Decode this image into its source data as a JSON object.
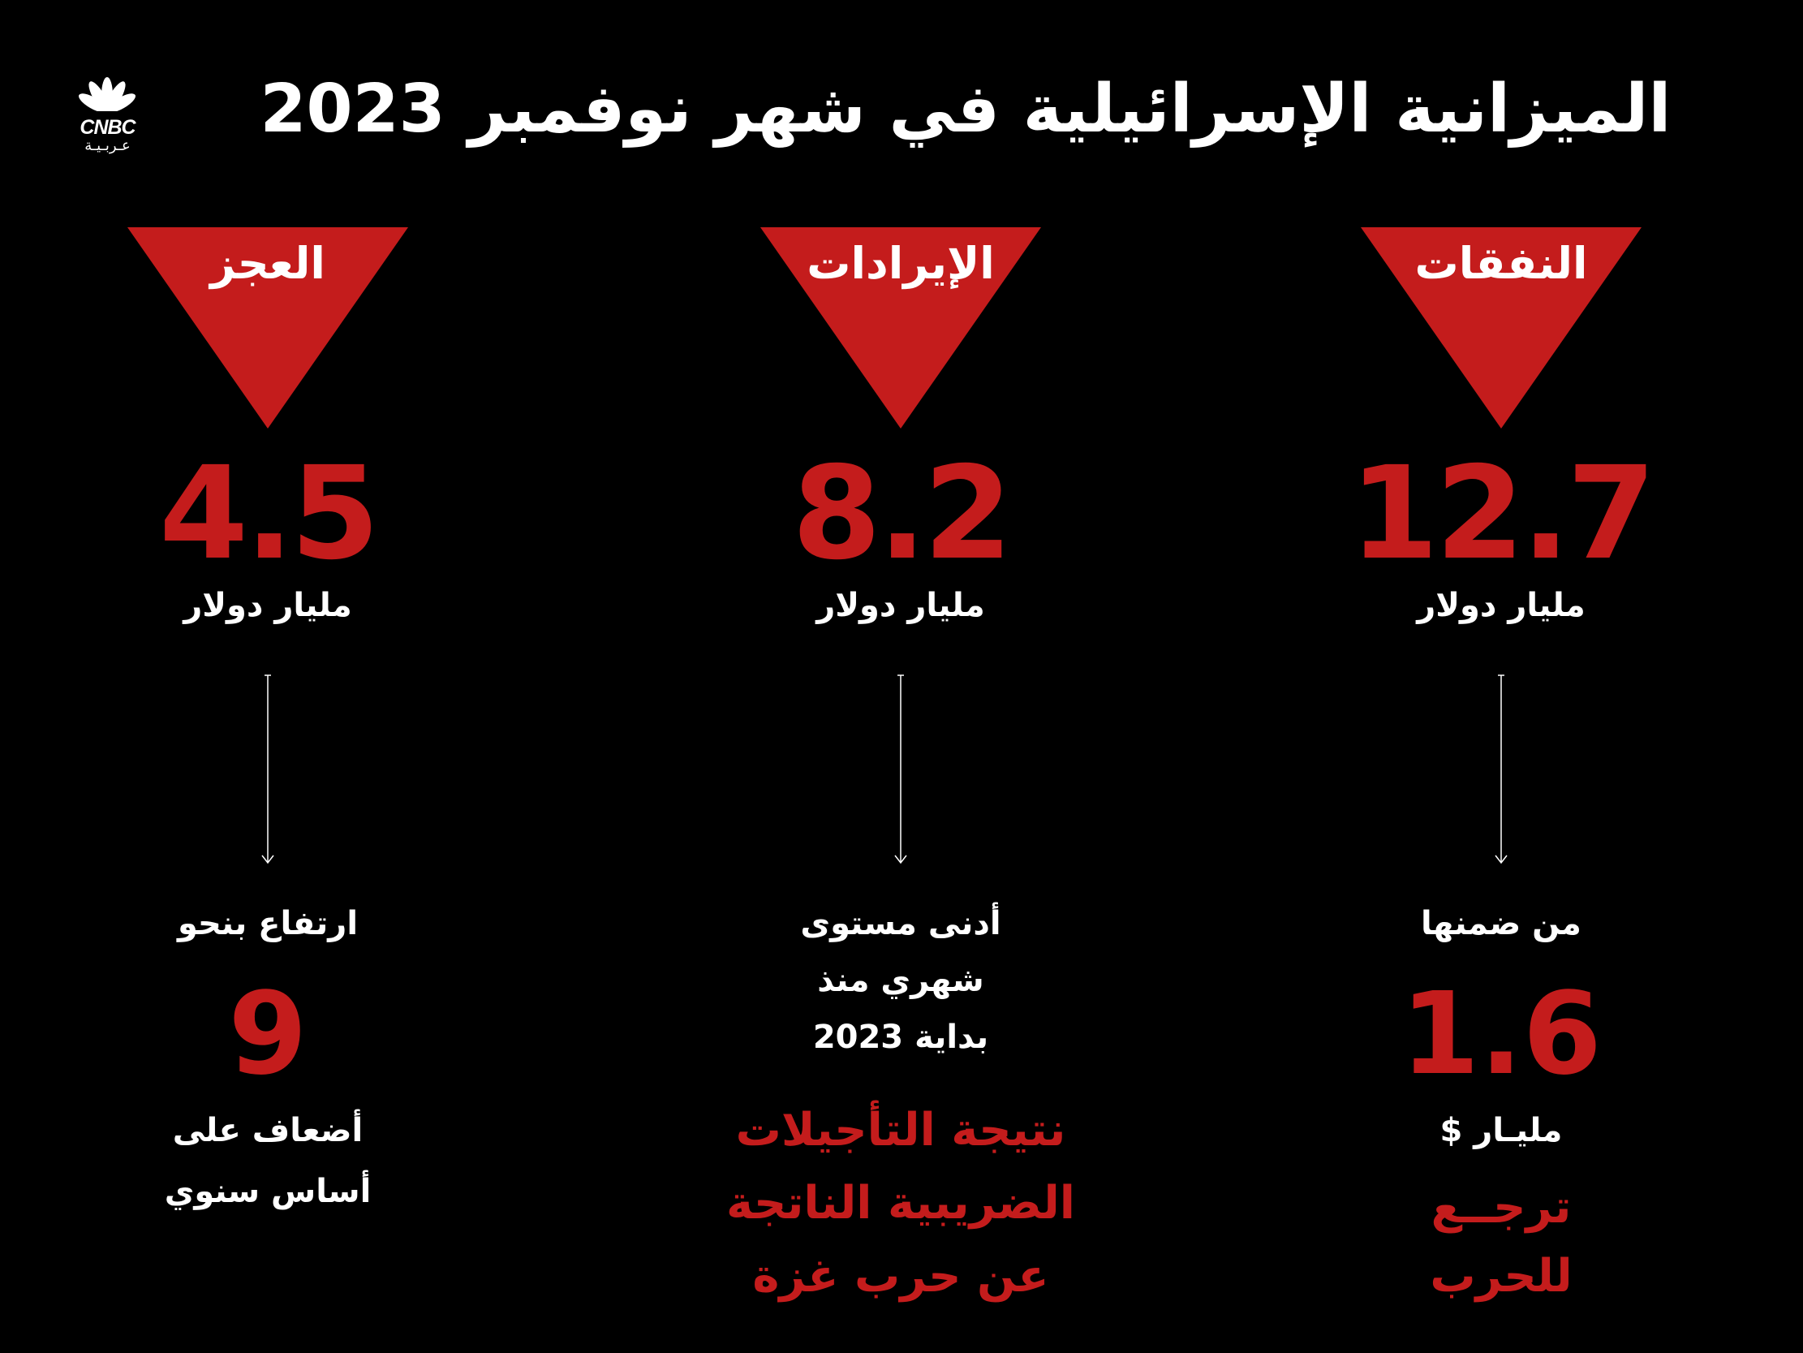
{
  "title": "الميزانية الإسرائيلية في شهر نوفمبر 2023",
  "logo": {
    "brand": "CNBC",
    "arabic": "عـربـيـة"
  },
  "colors": {
    "background": "#000000",
    "accent_red": "#c41c1c",
    "text": "#ffffff"
  },
  "columns": {
    "expenses": {
      "label": "النفقات",
      "value": "12.7",
      "unit": "مليار دولار",
      "note_line": "من ضمنها",
      "sub_value": "1.6",
      "sub_unit": "مليـار $",
      "red_lines": [
        "ترجــع",
        "للحرب"
      ]
    },
    "revenues": {
      "label": "الإيرادات",
      "value": "8.2",
      "unit": "مليار دولار",
      "note_lines": [
        "أدنى مستوى",
        "شهري منذ",
        "بداية 2023"
      ],
      "red_lines": [
        "نتيجة التأجيلات",
        "الضريبية الناتجة",
        "عن حرب غزة"
      ]
    },
    "deficit": {
      "label": "العجز",
      "value": "4.5",
      "unit": "مليار دولار",
      "note_line": "ارتفاع بنحو",
      "sub_value": "9",
      "after_lines": [
        "أضعاف على",
        "أساس سنوي"
      ]
    }
  }
}
